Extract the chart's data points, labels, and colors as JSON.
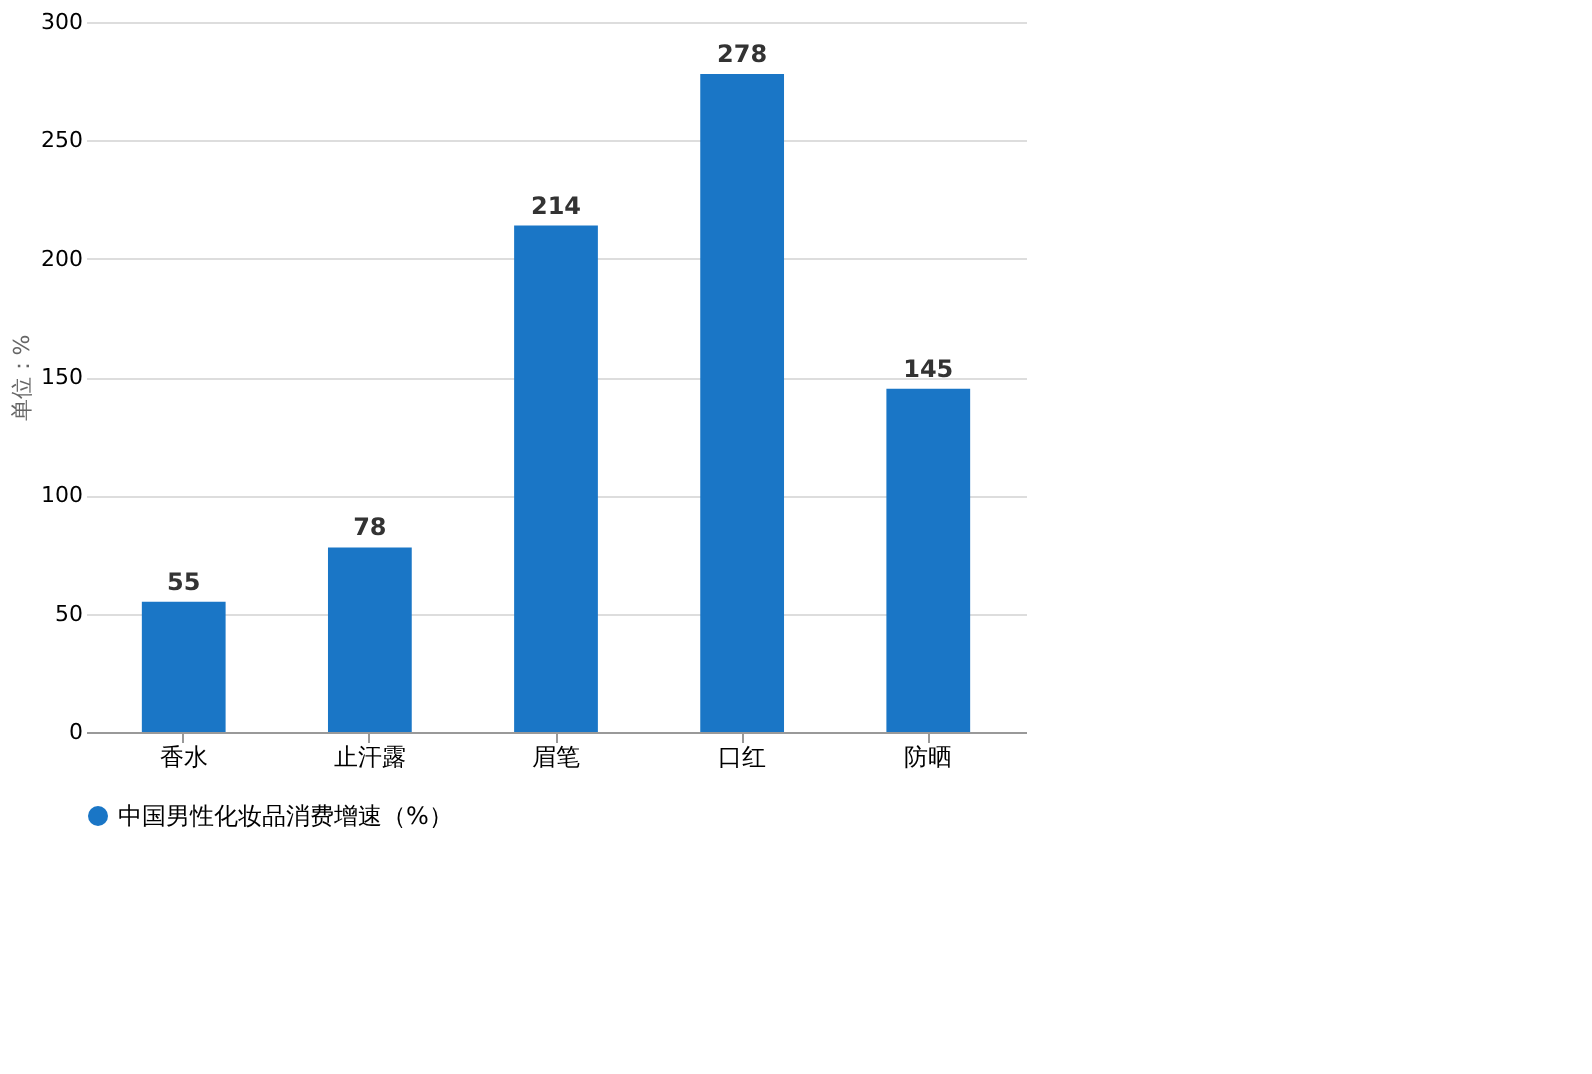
{
  "chart_data": {
    "type": "bar",
    "ylabel": "单位：%",
    "categories": [
      "香水",
      "止汗露",
      "眉笔",
      "口红",
      "防晒"
    ],
    "series": [
      {
        "name": "中国男性化妆品消费增速（%）",
        "color": "#1a76c6",
        "values": [
          55,
          78,
          214,
          278,
          145
        ]
      }
    ],
    "ylim": [
      0,
      300
    ],
    "yticks": [
      0,
      50,
      100,
      150,
      200,
      250,
      300
    ],
    "grid": "y",
    "legend": "bottom",
    "data_labels": true
  }
}
